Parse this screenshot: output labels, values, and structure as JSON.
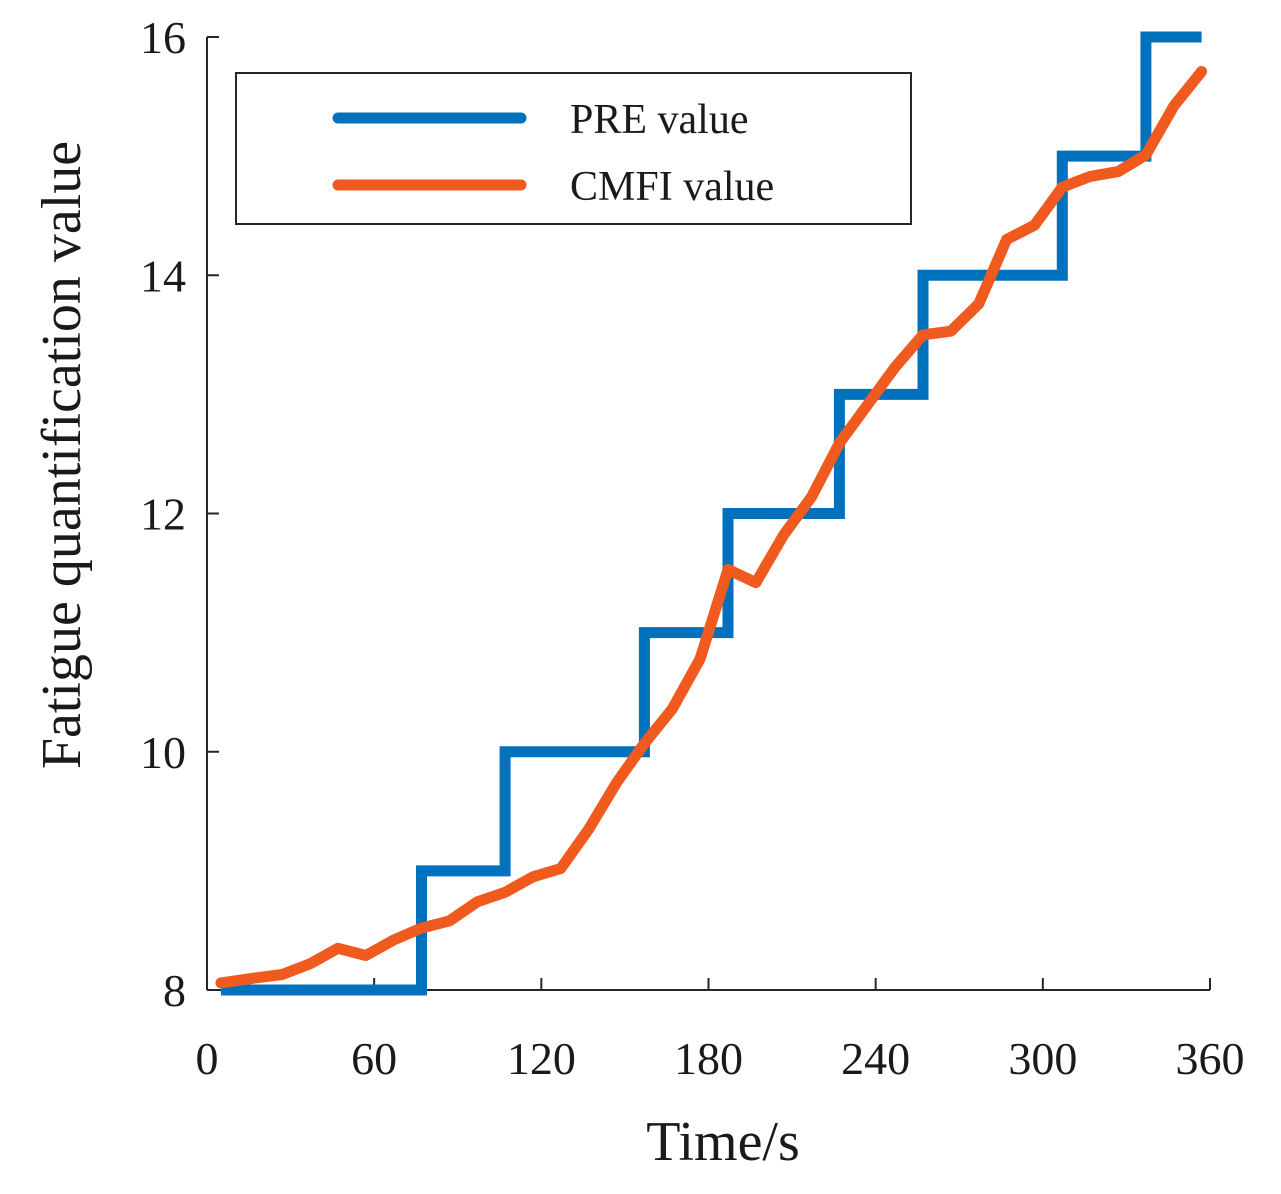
{
  "chart_data": {
    "type": "line",
    "title": "",
    "xlabel": "Time/s",
    "ylabel": "Fatigue quantification value",
    "xlim": [
      0,
      360
    ],
    "ylim": [
      8,
      16
    ],
    "xticks": [
      0,
      60,
      120,
      180,
      240,
      300,
      360
    ],
    "yticks": [
      8,
      10,
      12,
      14,
      16
    ],
    "xtick_labels": [
      "0",
      "60",
      "120",
      "180",
      "240",
      "300",
      "360"
    ],
    "ytick_labels": [
      "8",
      "10",
      "12",
      "14",
      "16"
    ],
    "grid": false,
    "legend_position": "top-left",
    "series": [
      {
        "name": "PRE value",
        "color": "#0072BD",
        "step": true,
        "x": [
          5,
          77,
          77,
          107,
          107,
          157,
          157,
          187,
          187,
          227,
          227,
          257,
          257,
          307,
          307,
          337,
          337,
          357
        ],
        "values": [
          8,
          8,
          9,
          9,
          10,
          10,
          11,
          11,
          12,
          12,
          13,
          13,
          14,
          14,
          15,
          15,
          16,
          16
        ]
      },
      {
        "name": "CMFI value",
        "color": "#F05A1E",
        "step": false,
        "x": [
          5,
          17,
          27,
          37,
          47,
          57,
          67,
          77,
          87,
          97,
          107,
          117,
          127,
          137,
          147,
          157,
          167,
          177,
          187,
          197,
          207,
          217,
          227,
          237,
          247,
          257,
          267,
          277,
          287,
          297,
          307,
          317,
          327,
          337,
          347,
          357
        ],
        "values": [
          8.06,
          8.1,
          8.13,
          8.22,
          8.35,
          8.29,
          8.42,
          8.52,
          8.58,
          8.74,
          8.82,
          8.95,
          9.02,
          9.35,
          9.74,
          10.07,
          10.36,
          10.78,
          11.53,
          11.42,
          11.82,
          12.14,
          12.59,
          12.91,
          13.23,
          13.5,
          13.53,
          13.76,
          14.3,
          14.42,
          14.74,
          14.83,
          14.87,
          15.01,
          15.42,
          15.71
        ]
      }
    ]
  }
}
